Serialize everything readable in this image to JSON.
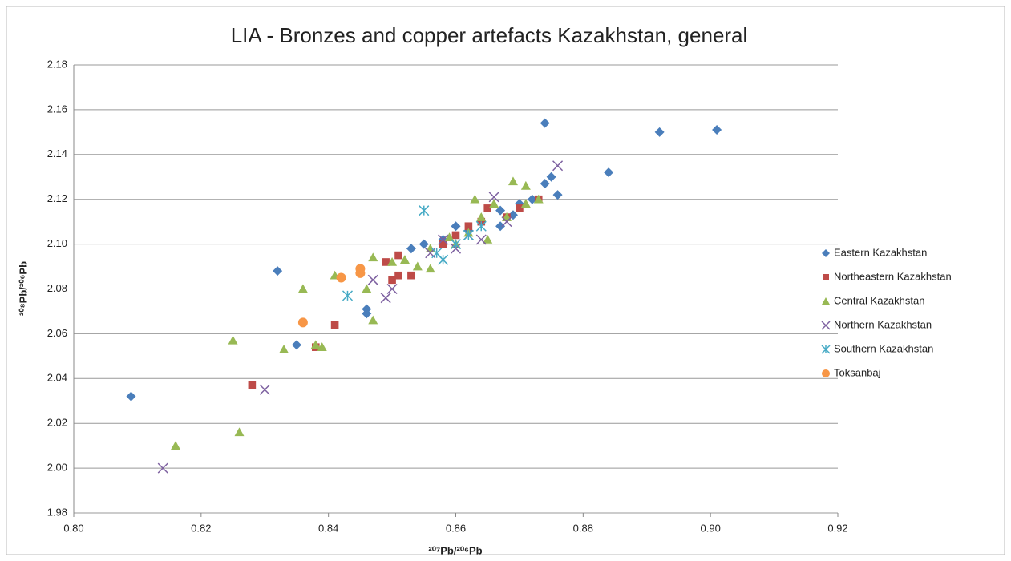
{
  "chart_data": {
    "type": "scatter",
    "title": "LIA - Bronzes and copper artefacts Kazakhstan, general",
    "xlabel": "²⁰⁷Pb/²⁰⁶Pb",
    "ylabel": "²⁰⁸Pb/²⁰⁶Pb",
    "xlim": [
      0.8,
      0.92
    ],
    "xticks": [
      {
        "value": 0.8,
        "label": "0.80"
      },
      0.82,
      0.84,
      0.86,
      0.88,
      {
        "value": 0.9,
        "label": "0.90"
      },
      0.92
    ],
    "ylim": [
      1.98,
      2.18
    ],
    "yticks": [
      1.98,
      {
        "value": 2.0,
        "label": "2.00"
      },
      2.02,
      2.04,
      2.06,
      2.08,
      {
        "value": 2.1,
        "label": "2.10"
      },
      2.12,
      2.14,
      2.16,
      2.18
    ],
    "grid": true,
    "legend": "right",
    "series": [
      {
        "name": "Eastern Kazakhstan",
        "color": "#4a7ebb",
        "marker": "diamond",
        "x": [
          0.809,
          0.832,
          0.835,
          0.846,
          0.846,
          0.853,
          0.855,
          0.858,
          0.86,
          0.862,
          0.864,
          0.867,
          0.867,
          0.869,
          0.87,
          0.872,
          0.874,
          0.874,
          0.875,
          0.876,
          0.884,
          0.892,
          0.901
        ],
        "y": [
          2.032,
          2.088,
          2.055,
          2.069,
          2.071,
          2.098,
          2.1,
          2.102,
          2.108,
          2.106,
          2.11,
          2.108,
          2.115,
          2.113,
          2.118,
          2.12,
          2.127,
          2.154,
          2.13,
          2.122,
          2.132,
          2.15,
          2.151
        ]
      },
      {
        "name": "Northeastern Kazakhstan",
        "color": "#be4b48",
        "marker": "square",
        "x": [
          0.828,
          0.838,
          0.841,
          0.849,
          0.85,
          0.851,
          0.851,
          0.853,
          0.858,
          0.86,
          0.862,
          0.864,
          0.865,
          0.868,
          0.87,
          0.873
        ],
        "y": [
          2.037,
          2.054,
          2.064,
          2.092,
          2.084,
          2.095,
          2.086,
          2.086,
          2.1,
          2.104,
          2.108,
          2.11,
          2.116,
          2.112,
          2.116,
          2.12
        ]
      },
      {
        "name": "Central Kazakhstan",
        "color": "#98b954",
        "marker": "triangle",
        "x": [
          0.816,
          0.825,
          0.826,
          0.833,
          0.836,
          0.838,
          0.839,
          0.841,
          0.846,
          0.847,
          0.847,
          0.85,
          0.852,
          0.854,
          0.856,
          0.856,
          0.859,
          0.86,
          0.862,
          0.863,
          0.864,
          0.865,
          0.866,
          0.868,
          0.869,
          0.871,
          0.871,
          0.873
        ],
        "y": [
          2.01,
          2.057,
          2.016,
          2.053,
          2.08,
          2.055,
          2.054,
          2.086,
          2.08,
          2.066,
          2.094,
          2.092,
          2.093,
          2.09,
          2.089,
          2.098,
          2.103,
          2.1,
          2.105,
          2.12,
          2.112,
          2.102,
          2.118,
          2.112,
          2.128,
          2.126,
          2.118,
          2.12
        ]
      },
      {
        "name": "Northern Kazakhstan",
        "color": "#7d60a0",
        "marker": "x",
        "x": [
          0.814,
          0.83,
          0.847,
          0.849,
          0.85,
          0.856,
          0.858,
          0.86,
          0.862,
          0.864,
          0.866,
          0.868,
          0.876
        ],
        "y": [
          2.0,
          2.035,
          2.084,
          2.076,
          2.08,
          2.096,
          2.102,
          2.098,
          2.104,
          2.102,
          2.121,
          2.11,
          2.135
        ]
      },
      {
        "name": "Southern Kazakhstan",
        "color": "#46aac5",
        "marker": "star",
        "x": [
          0.843,
          0.855,
          0.857,
          0.858,
          0.86,
          0.862,
          0.864
        ],
        "y": [
          2.077,
          2.115,
          2.096,
          2.093,
          2.1,
          2.104,
          2.108
        ]
      },
      {
        "name": "Toksanbaj",
        "color": "#f79646",
        "marker": "circle",
        "x": [
          0.836,
          0.842,
          0.845,
          0.845
        ],
        "y": [
          2.065,
          2.085,
          2.087,
          2.089
        ]
      }
    ]
  }
}
